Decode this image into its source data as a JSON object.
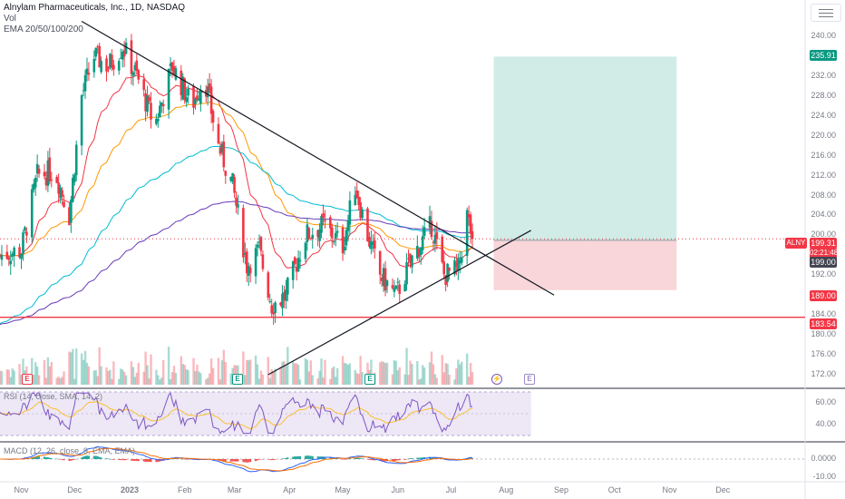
{
  "header": {
    "title": "Alnylam Pharmaceuticals, Inc., 1D, NASDAQ",
    "volume_label": "Vol",
    "ema_label": "EMA 20/50/100/200"
  },
  "indicators": {
    "rsi_label": "RSI (14, close, SMA, 14, 2)",
    "macd_label": "MACD (12, 26, close, 9, EMA, EMA)"
  },
  "price_axis": {
    "ticks": [
      "240.00",
      "236.00",
      "232.00",
      "228.00",
      "224.00",
      "220.00",
      "216.00",
      "212.00",
      "208.00",
      "204.00",
      "200.00",
      "196.00",
      "192.00",
      "188.00",
      "184.00",
      "180.00",
      "176.00",
      "172.00"
    ],
    "rsi_ticks": [
      "60.00",
      "40.00"
    ],
    "macd_ticks": [
      "0.0000",
      "-10.00"
    ]
  },
  "badges": {
    "target": "235.91",
    "last": "199.31",
    "countdown": "02:21:48",
    "entry": "199.00",
    "stop": "189.00",
    "support": "183.54",
    "ticker": "ALNY"
  },
  "time_axis": {
    "labels": [
      "Nov",
      "Dec",
      "2023",
      "Feb",
      "Mar",
      "Apr",
      "May",
      "Jun",
      "Jul",
      "Aug",
      "Sep",
      "Oct",
      "Nov",
      "Dec"
    ]
  },
  "events": {
    "earnings_letter": "E",
    "split_glyph": "⚡"
  },
  "colors": {
    "up": "#089981",
    "down": "#f23645",
    "ema20": "#f23645",
    "ema50": "#ff9800",
    "ema100": "#00bcd4",
    "ema200": "#673ab7",
    "target_zone": "#d1ece6",
    "stop_zone": "#f9d6d9",
    "rsi_line": "#7e57c2",
    "rsi_ma": "#fbc02d",
    "rsi_band": "#ede7f6",
    "macd_line": "#2962ff",
    "signal_line": "#ff6d00"
  },
  "chart_data": {
    "type": "candlestick",
    "symbol": "ALNY",
    "interval": "1D",
    "ylim": [
      170,
      244
    ],
    "x_range": [
      "2022-10-20",
      "2023-12-31"
    ],
    "anchors": [
      {
        "date": "2022-10-20",
        "close": 196
      },
      {
        "date": "2022-11-01",
        "close": 197
      },
      {
        "date": "2022-11-10",
        "close": 212
      },
      {
        "date": "2022-11-20",
        "close": 213
      },
      {
        "date": "2022-11-28",
        "close": 204
      },
      {
        "date": "2022-12-05",
        "close": 228
      },
      {
        "date": "2022-12-12",
        "close": 236
      },
      {
        "date": "2022-12-20",
        "close": 234
      },
      {
        "date": "2022-12-28",
        "close": 238
      },
      {
        "date": "2023-01-05",
        "close": 232
      },
      {
        "date": "2023-01-15",
        "close": 222
      },
      {
        "date": "2023-01-25",
        "close": 234
      },
      {
        "date": "2023-02-05",
        "close": 226
      },
      {
        "date": "2023-02-12",
        "close": 232
      },
      {
        "date": "2023-02-20",
        "close": 218
      },
      {
        "date": "2023-02-28",
        "close": 210
      },
      {
        "date": "2023-03-08",
        "close": 194
      },
      {
        "date": "2023-03-15",
        "close": 197
      },
      {
        "date": "2023-03-22",
        "close": 186
      },
      {
        "date": "2023-03-30",
        "close": 188
      },
      {
        "date": "2023-04-10",
        "close": 200
      },
      {
        "date": "2023-04-20",
        "close": 202
      },
      {
        "date": "2023-05-01",
        "close": 198
      },
      {
        "date": "2023-05-08",
        "close": 210
      },
      {
        "date": "2023-05-15",
        "close": 200
      },
      {
        "date": "2023-05-22",
        "close": 192
      },
      {
        "date": "2023-05-31",
        "close": 188
      },
      {
        "date": "2023-06-10",
        "close": 196
      },
      {
        "date": "2023-06-20",
        "close": 202
      },
      {
        "date": "2023-06-27",
        "close": 192
      },
      {
        "date": "2023-07-05",
        "close": 193
      },
      {
        "date": "2023-07-10",
        "close": 204
      },
      {
        "date": "2023-07-13",
        "close": 199.31
      }
    ],
    "trendlines": [
      {
        "name": "descending resistance",
        "from": {
          "date": "2022-12-05",
          "price": 243
        },
        "to": {
          "date": "2023-08-28",
          "price": 188
        }
      },
      {
        "name": "ascending support",
        "from": {
          "date": "2023-03-20",
          "price": 172
        },
        "to": {
          "date": "2023-08-15",
          "price": 201
        }
      }
    ],
    "levels": {
      "support": 183.54,
      "entry": 199.0,
      "target": 235.91,
      "stop": 189.0,
      "last": 199.31
    },
    "position": {
      "type": "long",
      "start": "2023-07-25",
      "end": "2023-11-05",
      "entry": 199.0,
      "target": 235.91,
      "stop": 189.0
    },
    "rsi": {
      "ylim": [
        30,
        70
      ],
      "upper": 70,
      "lower": 30,
      "ticks": [
        60,
        40
      ]
    },
    "macd": {
      "ylim": [
        -12,
        8
      ],
      "ticks": [
        0,
        -10
      ]
    },
    "earnings_dates": [
      "2022-10-27",
      "2023-02-09",
      "2023-05-04",
      "2023-08-03"
    ],
    "split_dates": [
      "2023-07-14"
    ]
  }
}
